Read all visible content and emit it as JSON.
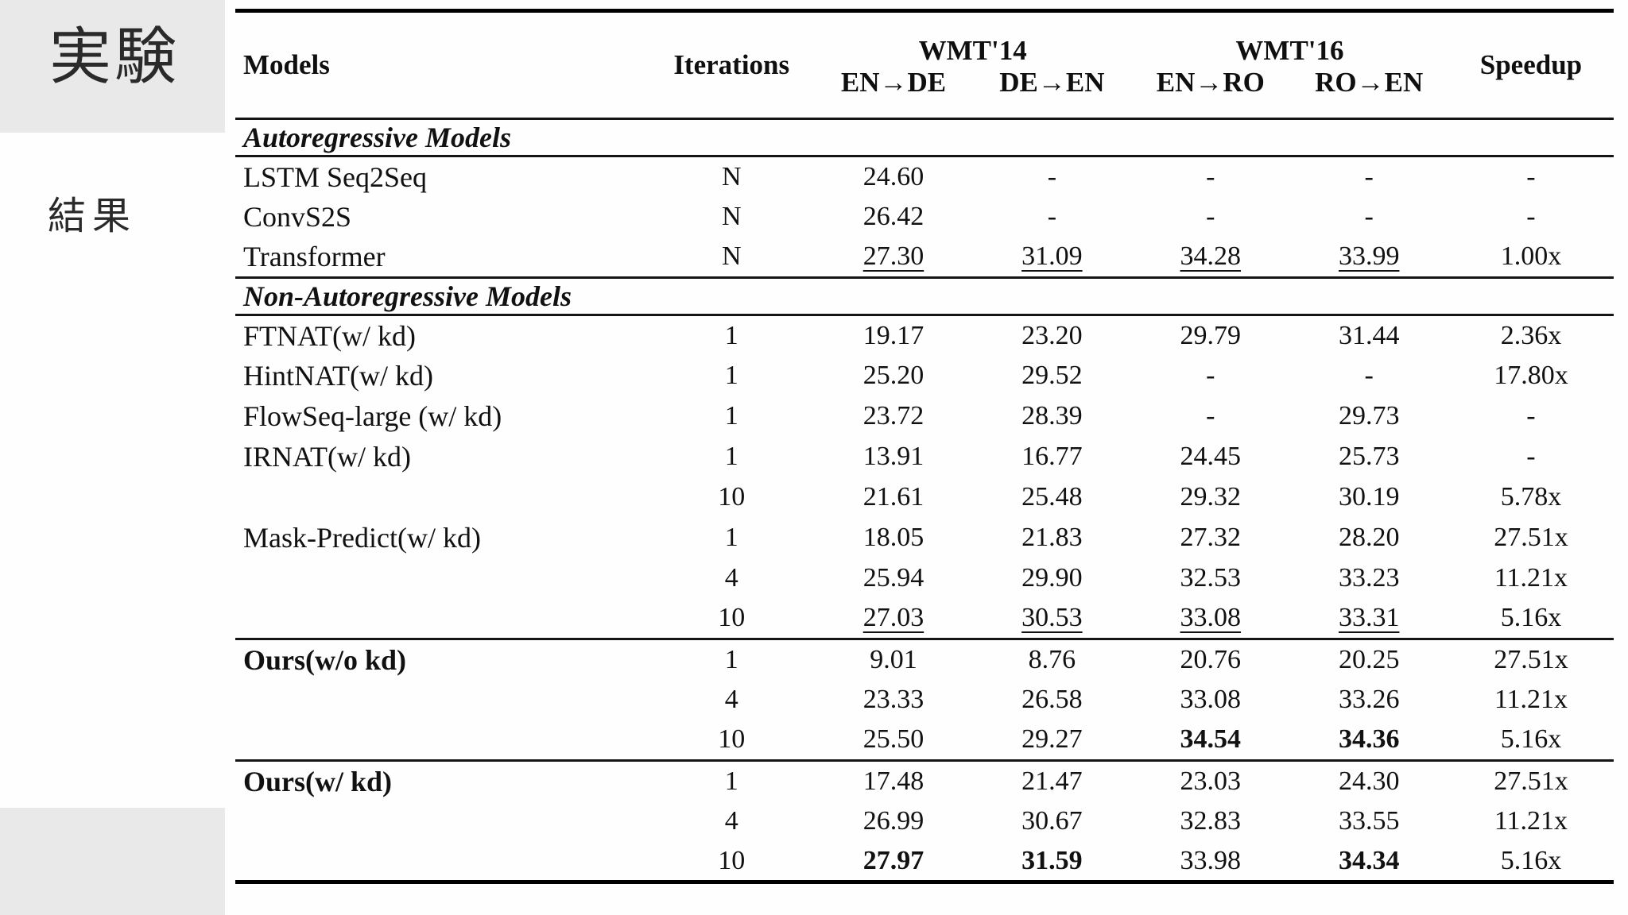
{
  "slide": {
    "title_jp": "実験",
    "subtitle_jp": "結果",
    "colors": {
      "decor_block_gray": "#e9e9e9",
      "text_black": "#111111",
      "background": "#fefefe"
    }
  },
  "table": {
    "headers": {
      "models": "Models",
      "iterations": "Iterations",
      "group1": "WMT'14",
      "group2": "WMT'16",
      "speedup": "Speedup",
      "cols": [
        "EN→DE",
        "DE→EN",
        "EN→RO",
        "RO→EN"
      ]
    },
    "rows": [
      {
        "type": "section",
        "label": "Autoregressive Models"
      },
      {
        "type": "data",
        "model": "LSTM Seq2Seq",
        "iter": "N",
        "vals": [
          {
            "t": "24.60"
          },
          {
            "t": "-"
          },
          {
            "t": "-"
          },
          {
            "t": "-"
          },
          {
            "t": "-"
          }
        ]
      },
      {
        "type": "data",
        "model": "ConvS2S",
        "iter": "N",
        "vals": [
          {
            "t": "26.42"
          },
          {
            "t": "-"
          },
          {
            "t": "-"
          },
          {
            "t": "-"
          },
          {
            "t": "-"
          }
        ]
      },
      {
        "type": "data",
        "model": "Transformer",
        "iter": "N",
        "vals": [
          {
            "t": "27.30",
            "u": true
          },
          {
            "t": "31.09",
            "u": true
          },
          {
            "t": "34.28",
            "u": true
          },
          {
            "t": "33.99",
            "u": true
          },
          {
            "t": "1.00x"
          }
        ]
      },
      {
        "type": "section",
        "label": "Non-Autoregressive Models"
      },
      {
        "type": "data",
        "model": "FTNAT(w/ kd)",
        "iter": "1",
        "vals": [
          {
            "t": "19.17"
          },
          {
            "t": "23.20"
          },
          {
            "t": "29.79"
          },
          {
            "t": "31.44"
          },
          {
            "t": "2.36x"
          }
        ]
      },
      {
        "type": "data",
        "model": "HintNAT(w/ kd)",
        "iter": "1",
        "vals": [
          {
            "t": "25.20"
          },
          {
            "t": "29.52"
          },
          {
            "t": "-"
          },
          {
            "t": "-"
          },
          {
            "t": "17.80x"
          }
        ]
      },
      {
        "type": "data",
        "model": "FlowSeq-large (w/ kd)",
        "iter": "1",
        "vals": [
          {
            "t": "23.72"
          },
          {
            "t": "28.39"
          },
          {
            "t": "-"
          },
          {
            "t": "29.73"
          },
          {
            "t": "-"
          }
        ]
      },
      {
        "type": "data",
        "model": "IRNAT(w/ kd)",
        "iter": "1",
        "vals": [
          {
            "t": "13.91"
          },
          {
            "t": "16.77"
          },
          {
            "t": "24.45"
          },
          {
            "t": "25.73"
          },
          {
            "t": "-"
          }
        ]
      },
      {
        "type": "data",
        "model": "",
        "iter": "10",
        "vals": [
          {
            "t": "21.61"
          },
          {
            "t": "25.48"
          },
          {
            "t": "29.32"
          },
          {
            "t": "30.19"
          },
          {
            "t": "5.78x"
          }
        ]
      },
      {
        "type": "data",
        "model": "Mask-Predict(w/ kd)",
        "iter": "1",
        "vals": [
          {
            "t": "18.05"
          },
          {
            "t": "21.83"
          },
          {
            "t": "27.32"
          },
          {
            "t": "28.20"
          },
          {
            "t": "27.51x"
          }
        ]
      },
      {
        "type": "data",
        "model": "",
        "iter": "4",
        "vals": [
          {
            "t": "25.94"
          },
          {
            "t": "29.90"
          },
          {
            "t": "32.53"
          },
          {
            "t": "33.23"
          },
          {
            "t": "11.21x"
          }
        ]
      },
      {
        "type": "data",
        "model": "",
        "iter": "10",
        "vals": [
          {
            "t": "27.03",
            "u": true
          },
          {
            "t": "30.53",
            "u": true
          },
          {
            "t": "33.08",
            "u": true
          },
          {
            "t": "33.31",
            "u": true
          },
          {
            "t": "5.16x"
          }
        ]
      },
      {
        "type": "data",
        "model": "Ours(w/o kd)",
        "model_bold": true,
        "rule_above": true,
        "iter": "1",
        "vals": [
          {
            "t": "9.01"
          },
          {
            "t": "8.76"
          },
          {
            "t": "20.76"
          },
          {
            "t": "20.25"
          },
          {
            "t": "27.51x"
          }
        ]
      },
      {
        "type": "data",
        "model": "",
        "iter": "4",
        "vals": [
          {
            "t": "23.33"
          },
          {
            "t": "26.58"
          },
          {
            "t": "33.08"
          },
          {
            "t": "33.26"
          },
          {
            "t": "11.21x"
          }
        ]
      },
      {
        "type": "data",
        "model": "",
        "iter": "10",
        "vals": [
          {
            "t": "25.50"
          },
          {
            "t": "29.27"
          },
          {
            "t": "34.54",
            "b": true
          },
          {
            "t": "34.36",
            "b": true
          },
          {
            "t": "5.16x"
          }
        ]
      },
      {
        "type": "data",
        "model": "Ours(w/ kd)",
        "model_bold": true,
        "rule_above": true,
        "iter": "1",
        "vals": [
          {
            "t": "17.48"
          },
          {
            "t": "21.47"
          },
          {
            "t": "23.03"
          },
          {
            "t": "24.30"
          },
          {
            "t": "27.51x"
          }
        ]
      },
      {
        "type": "data",
        "model": "",
        "iter": "4",
        "vals": [
          {
            "t": "26.99"
          },
          {
            "t": "30.67"
          },
          {
            "t": "32.83"
          },
          {
            "t": "33.55"
          },
          {
            "t": "11.21x"
          }
        ]
      },
      {
        "type": "data",
        "model": "",
        "iter": "10",
        "vals": [
          {
            "t": "27.97",
            "b": true
          },
          {
            "t": "31.59",
            "b": true
          },
          {
            "t": "33.98"
          },
          {
            "t": "34.34",
            "b": true
          },
          {
            "t": "5.16x"
          }
        ]
      }
    ]
  }
}
